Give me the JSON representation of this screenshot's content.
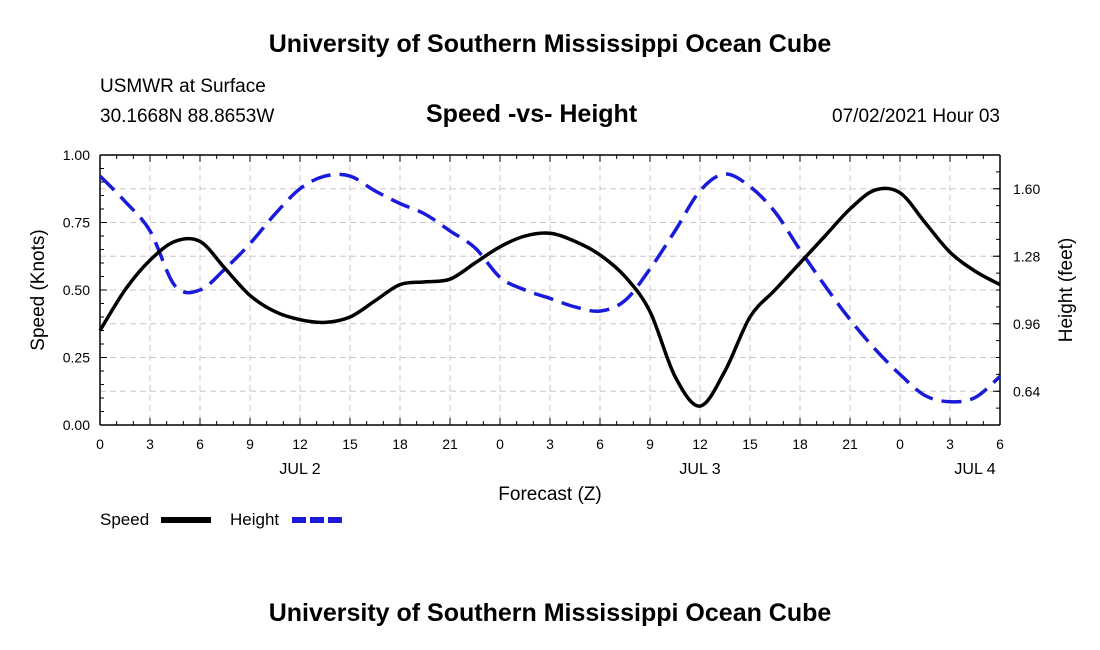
{
  "header": {
    "title": "University of Southern Mississippi Ocean Cube",
    "station": "USMWR at Surface",
    "coordinates": "30.1668N  88.8653W",
    "datetime": "07/02/2021 Hour 03"
  },
  "footer": {
    "title": "University of Southern Mississippi Ocean Cube"
  },
  "legend": {
    "speed_label": "Speed",
    "height_label": "Height"
  },
  "chart_data": {
    "type": "line",
    "title": "Speed -vs- Height",
    "xlabel": "Forecast (Z)",
    "ylabel": "Speed (Knots)",
    "y2label": "Height (feet)",
    "x_range_hours": [
      0,
      54
    ],
    "xticks": [
      {
        "hour": 0,
        "label": "0"
      },
      {
        "hour": 3,
        "label": "3"
      },
      {
        "hour": 6,
        "label": "6"
      },
      {
        "hour": 9,
        "label": "9"
      },
      {
        "hour": 12,
        "label": "12"
      },
      {
        "hour": 15,
        "label": "15"
      },
      {
        "hour": 18,
        "label": "18"
      },
      {
        "hour": 21,
        "label": "21"
      },
      {
        "hour": 24,
        "label": "0"
      },
      {
        "hour": 27,
        "label": "3"
      },
      {
        "hour": 30,
        "label": "6"
      },
      {
        "hour": 33,
        "label": "9"
      },
      {
        "hour": 36,
        "label": "12"
      },
      {
        "hour": 39,
        "label": "15"
      },
      {
        "hour": 42,
        "label": "18"
      },
      {
        "hour": 45,
        "label": "21"
      },
      {
        "hour": 48,
        "label": "0"
      },
      {
        "hour": 51,
        "label": "3"
      },
      {
        "hour": 54,
        "label": "6"
      }
    ],
    "date_labels": [
      {
        "hour": 12,
        "label": "JUL 2"
      },
      {
        "hour": 36,
        "label": "JUL 3"
      },
      {
        "hour": 52.5,
        "label": "JUL 4"
      }
    ],
    "ylim": [
      0,
      1
    ],
    "yticks": [
      "0.00",
      "0.25",
      "0.50",
      "0.75",
      "1.00"
    ],
    "y2lim": [
      0.48,
      1.76
    ],
    "y2ticks": [
      "0.64",
      "0.96",
      "1.28",
      "1.60"
    ],
    "series": [
      {
        "name": "Speed",
        "axis": "left",
        "color": "#000000",
        "style": "solid",
        "x": [
          0,
          1.5,
          3,
          4.5,
          6,
          7.5,
          9,
          10.5,
          12,
          13.5,
          15,
          16.5,
          18,
          19.5,
          21,
          22.5,
          24,
          25.5,
          27,
          28.5,
          30,
          31.5,
          33,
          34.5,
          36,
          37.5,
          39,
          40.5,
          42,
          43.5,
          45,
          46.5,
          48,
          49.5,
          51,
          52.5,
          54
        ],
        "values": [
          0.35,
          0.5,
          0.61,
          0.68,
          0.68,
          0.58,
          0.48,
          0.42,
          0.39,
          0.38,
          0.4,
          0.46,
          0.52,
          0.53,
          0.54,
          0.6,
          0.66,
          0.7,
          0.71,
          0.68,
          0.63,
          0.55,
          0.42,
          0.18,
          0.07,
          0.2,
          0.4,
          0.5,
          0.6,
          0.7,
          0.8,
          0.87,
          0.86,
          0.75,
          0.64,
          0.57,
          0.52
        ]
      },
      {
        "name": "Height",
        "axis": "right",
        "color": "#1a1adb",
        "style": "dashed",
        "x": [
          0,
          1.5,
          3,
          4.5,
          6,
          7.5,
          9,
          10.5,
          12,
          13.5,
          15,
          16.5,
          18,
          19.5,
          21,
          22.5,
          24,
          25.5,
          27,
          28.5,
          30,
          31.5,
          33,
          34.5,
          36,
          37.5,
          39,
          40.5,
          42,
          43.5,
          45,
          46.5,
          48,
          49.5,
          51,
          52.5,
          54
        ],
        "values": [
          1.66,
          1.54,
          1.4,
          1.14,
          1.12,
          1.22,
          1.34,
          1.48,
          1.6,
          1.66,
          1.66,
          1.59,
          1.53,
          1.48,
          1.4,
          1.32,
          1.18,
          1.12,
          1.08,
          1.04,
          1.02,
          1.07,
          1.22,
          1.4,
          1.59,
          1.67,
          1.61,
          1.49,
          1.31,
          1.14,
          0.98,
          0.84,
          0.72,
          0.62,
          0.59,
          0.61,
          0.71
        ]
      }
    ]
  }
}
